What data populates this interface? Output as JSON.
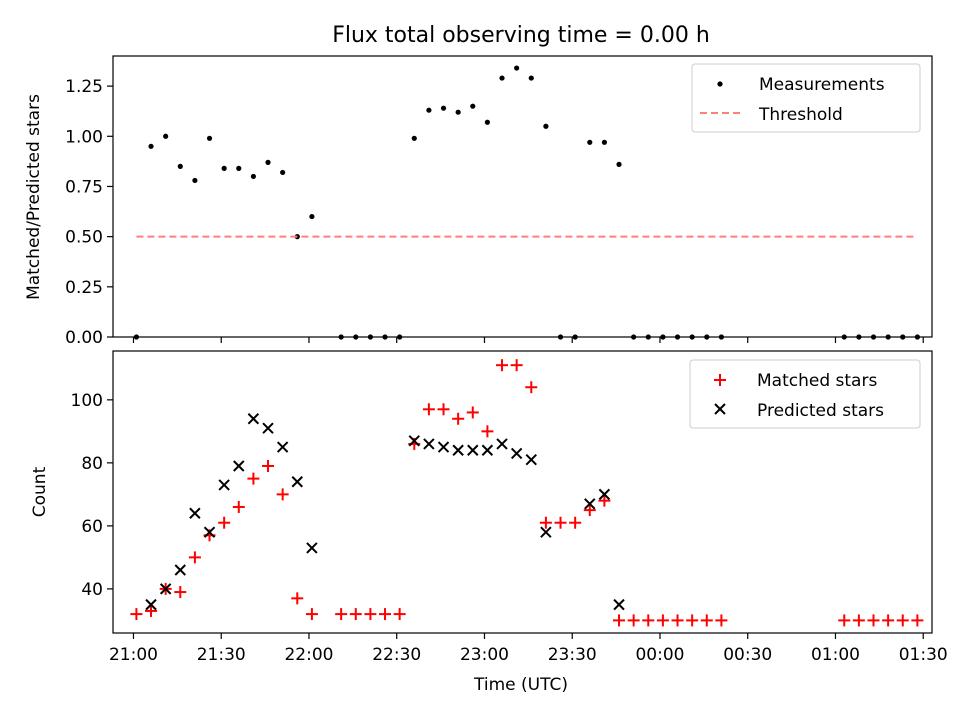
{
  "title": "Flux total observing time = 0.00 h",
  "xlabel": "Time (UTC)",
  "x_ticks": [
    "21:00",
    "21:30",
    "22:00",
    "22:30",
    "23:00",
    "23:30",
    "00:00",
    "00:30",
    "01:00",
    "01:30"
  ],
  "colors": {
    "measurement": "#000000",
    "threshold": "#ff7f7f",
    "matched": "#ff0000",
    "predicted": "#000000"
  },
  "chart_data": [
    {
      "type": "scatter",
      "ylabel": "Matched/Predicted stars",
      "xlim": [
        "20:53",
        "01:33"
      ],
      "ylim": [
        0,
        1.4
      ],
      "y_ticks": [
        "0.00",
        "0.25",
        "0.50",
        "0.75",
        "1.00",
        "1.25"
      ],
      "legend_position": "top-right",
      "series": [
        {
          "name": "Measurements",
          "type": "scatter",
          "points": [
            [
              "21:01",
              0.0
            ],
            [
              "21:06",
              0.95
            ],
            [
              "21:11",
              1.0
            ],
            [
              "21:16",
              0.85
            ],
            [
              "21:21",
              0.78
            ],
            [
              "21:26",
              0.99
            ],
            [
              "21:31",
              0.84
            ],
            [
              "21:36",
              0.84
            ],
            [
              "21:41",
              0.8
            ],
            [
              "21:46",
              0.87
            ],
            [
              "21:51",
              0.82
            ],
            [
              "21:56",
              0.5
            ],
            [
              "22:01",
              0.6
            ],
            [
              "22:11",
              0.0
            ],
            [
              "22:16",
              0.0
            ],
            [
              "22:21",
              0.0
            ],
            [
              "22:26",
              0.0
            ],
            [
              "22:31",
              0.0
            ],
            [
              "22:36",
              0.99
            ],
            [
              "22:41",
              1.13
            ],
            [
              "22:46",
              1.14
            ],
            [
              "22:51",
              1.12
            ],
            [
              "22:56",
              1.15
            ],
            [
              "23:01",
              1.07
            ],
            [
              "23:06",
              1.29
            ],
            [
              "23:11",
              1.34
            ],
            [
              "23:16",
              1.29
            ],
            [
              "23:21",
              1.05
            ],
            [
              "23:26",
              0.0
            ],
            [
              "23:31",
              0.0
            ],
            [
              "23:36",
              0.97
            ],
            [
              "23:41",
              0.97
            ],
            [
              "23:46",
              0.86
            ],
            [
              "23:51",
              0.0
            ],
            [
              "23:56",
              0.0
            ],
            [
              "00:01",
              0.0
            ],
            [
              "00:06",
              0.0
            ],
            [
              "00:11",
              0.0
            ],
            [
              "00:16",
              0.0
            ],
            [
              "00:21",
              0.0
            ],
            [
              "01:03",
              0.0
            ],
            [
              "01:08",
              0.0
            ],
            [
              "01:13",
              0.0
            ],
            [
              "01:18",
              0.0
            ],
            [
              "01:23",
              0.0
            ],
            [
              "01:28",
              0.0
            ]
          ]
        },
        {
          "name": "Threshold",
          "type": "line",
          "style": "dashed",
          "points": [
            [
              "21:01",
              0.5
            ],
            [
              "01:28",
              0.5
            ]
          ]
        }
      ]
    },
    {
      "type": "scatter",
      "ylabel": "Count",
      "xlim": [
        "20:53",
        "01:33"
      ],
      "ylim": [
        26,
        115.5
      ],
      "y_ticks": [
        "40",
        "60",
        "80",
        "100"
      ],
      "legend_position": "top-right",
      "series": [
        {
          "name": "Matched stars",
          "marker": "+",
          "points": [
            [
              "21:01",
              32
            ],
            [
              "21:06",
              33
            ],
            [
              "21:11",
              40
            ],
            [
              "21:16",
              39
            ],
            [
              "21:21",
              50
            ],
            [
              "21:26",
              57
            ],
            [
              "21:31",
              61
            ],
            [
              "21:36",
              66
            ],
            [
              "21:41",
              75
            ],
            [
              "21:46",
              79
            ],
            [
              "21:51",
              70
            ],
            [
              "21:56",
              37
            ],
            [
              "22:01",
              32
            ],
            [
              "22:11",
              32
            ],
            [
              "22:16",
              32
            ],
            [
              "22:21",
              32
            ],
            [
              "22:26",
              32
            ],
            [
              "22:31",
              32
            ],
            [
              "22:36",
              86
            ],
            [
              "22:41",
              97
            ],
            [
              "22:46",
              97
            ],
            [
              "22:51",
              94
            ],
            [
              "22:56",
              96
            ],
            [
              "23:01",
              90
            ],
            [
              "23:06",
              111
            ],
            [
              "23:11",
              111
            ],
            [
              "23:16",
              104
            ],
            [
              "23:21",
              61
            ],
            [
              "23:26",
              61
            ],
            [
              "23:31",
              61
            ],
            [
              "23:36",
              65
            ],
            [
              "23:41",
              68
            ],
            [
              "23:46",
              30
            ],
            [
              "23:51",
              30
            ],
            [
              "23:56",
              30
            ],
            [
              "00:01",
              30
            ],
            [
              "00:06",
              30
            ],
            [
              "00:11",
              30
            ],
            [
              "00:16",
              30
            ],
            [
              "00:21",
              30
            ],
            [
              "01:03",
              30
            ],
            [
              "01:08",
              30
            ],
            [
              "01:13",
              30
            ],
            [
              "01:18",
              30
            ],
            [
              "01:23",
              30
            ],
            [
              "01:28",
              30
            ]
          ]
        },
        {
          "name": "Predicted stars",
          "marker": "x",
          "points": [
            [
              "21:06",
              35
            ],
            [
              "21:11",
              40
            ],
            [
              "21:16",
              46
            ],
            [
              "21:21",
              64
            ],
            [
              "21:26",
              58
            ],
            [
              "21:31",
              73
            ],
            [
              "21:36",
              79
            ],
            [
              "21:41",
              94
            ],
            [
              "21:46",
              91
            ],
            [
              "21:51",
              85
            ],
            [
              "21:56",
              74
            ],
            [
              "22:01",
              53
            ],
            [
              "22:36",
              87
            ],
            [
              "22:41",
              86
            ],
            [
              "22:46",
              85
            ],
            [
              "22:51",
              84
            ],
            [
              "22:56",
              84
            ],
            [
              "23:01",
              84
            ],
            [
              "23:06",
              86
            ],
            [
              "23:11",
              83
            ],
            [
              "23:16",
              81
            ],
            [
              "23:21",
              58
            ],
            [
              "23:36",
              67
            ],
            [
              "23:41",
              70
            ],
            [
              "23:46",
              35
            ]
          ]
        }
      ]
    }
  ]
}
